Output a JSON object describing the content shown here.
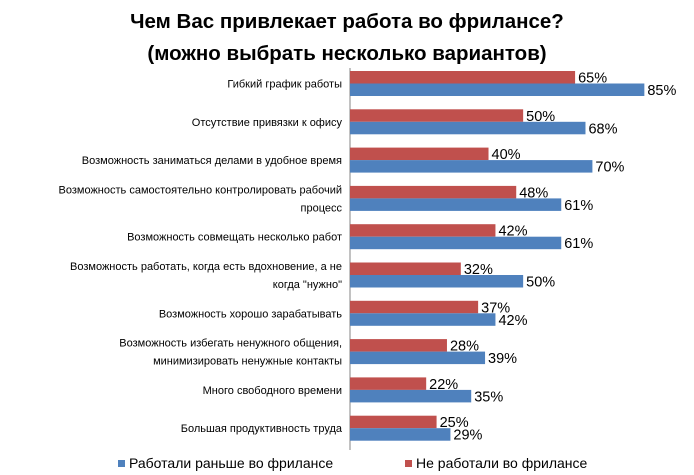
{
  "chart_data": {
    "type": "bar",
    "orientation": "horizontal",
    "title_lines": [
      "Чем Вас привлекает работа во фрилансе?",
      "(можно выбрать несколько вариантов)"
    ],
    "categories": [
      [
        "Гибкий график работы"
      ],
      [
        "Отсутствие привязки к офису"
      ],
      [
        "Возможность заниматься делами в удобное время"
      ],
      [
        "Возможность самостоятельно контролировать рабочий",
        "процесс"
      ],
      [
        "Возможность совмещать несколько работ"
      ],
      [
        "Возможность работать, когда есть вдохновение, а не",
        "когда \"нужно\""
      ],
      [
        "Возможность хорошо зарабатывать"
      ],
      [
        "Возможность избегать ненужного общения,",
        "минимизировать ненужные контакты"
      ],
      [
        "Много свободного времени"
      ],
      [
        "Большая продуктивность труда"
      ]
    ],
    "series": [
      {
        "name": "Не работали во фрилансе",
        "color": "#C0504D",
        "values": [
          65,
          50,
          40,
          48,
          42,
          32,
          37,
          28,
          22,
          25
        ],
        "labels": [
          "65%",
          "50%",
          "40%",
          "48%",
          "42%",
          "32%",
          "37%",
          "28%",
          "22%",
          "25%"
        ]
      },
      {
        "name": "Работали раньше во фрилансе",
        "color": "#4F81BD",
        "values": [
          85,
          68,
          70,
          61,
          61,
          50,
          42,
          39,
          35,
          29
        ],
        "labels": [
          "85%",
          "68%",
          "70%",
          "61%",
          "61%",
          "50%",
          "42%",
          "39%",
          "35%",
          "29%"
        ]
      }
    ],
    "legend": {
      "position": "bottom",
      "order": [
        "Работали раньше во фрилансе",
        "Не работали во фрилансе"
      ]
    },
    "value_unit": "%",
    "xlim": [
      0,
      100
    ],
    "grid": false
  }
}
